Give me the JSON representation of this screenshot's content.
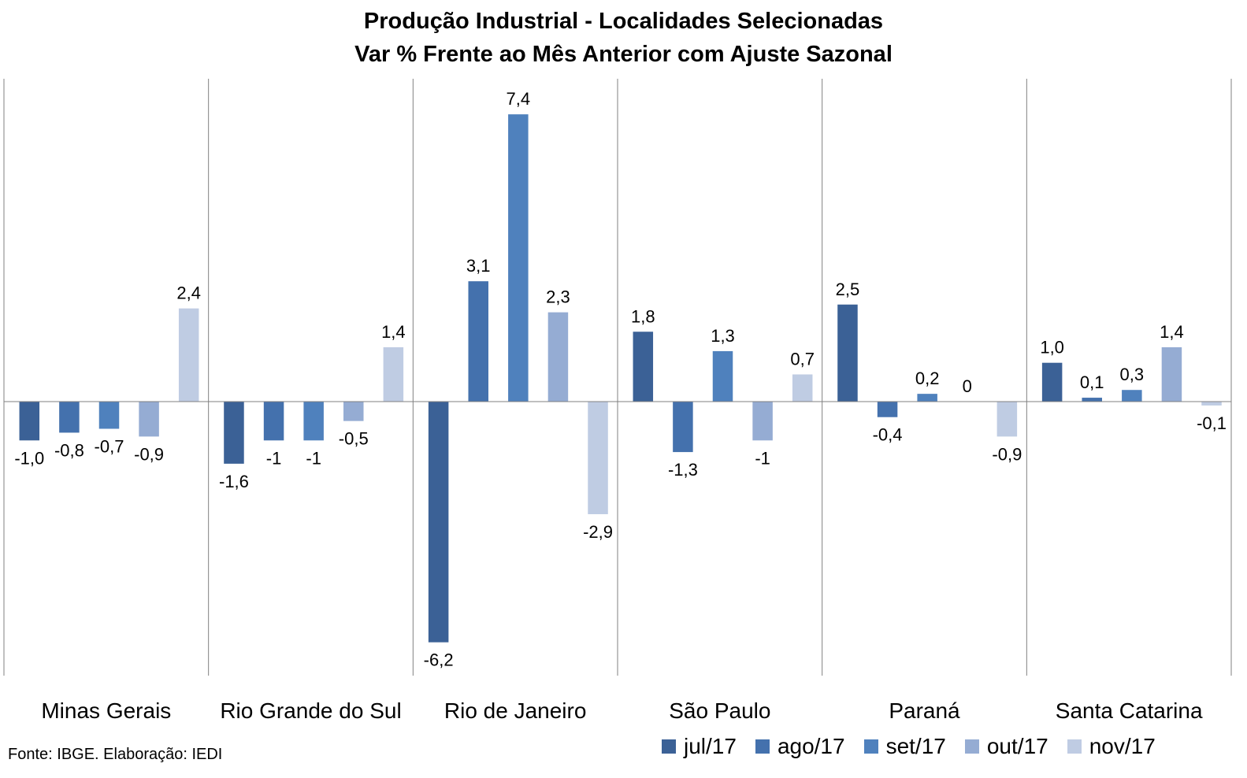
{
  "chart_data": {
    "type": "bar",
    "title": "Produção Industrial - Localidades Selecionadas",
    "subtitle": "Var % Frente ao Mês Anterior com Ajuste Sazonal",
    "categories": [
      "Minas Gerais",
      "Rio Grande do Sul",
      "Rio de Janeiro",
      "São Paulo",
      "Paraná",
      "Santa Catarina"
    ],
    "series": [
      {
        "name": "jul/17",
        "color": "#3b6196",
        "values": [
          -1.0,
          -1.6,
          -6.2,
          1.8,
          2.5,
          1.0
        ],
        "labels": [
          "-1,0",
          "-1,6",
          "-6,2",
          "1,8",
          "2,5",
          "1,0"
        ]
      },
      {
        "name": "ago/17",
        "color": "#4471ad",
        "values": [
          -0.8,
          -1,
          3.1,
          -1.3,
          -0.4,
          0.1
        ],
        "labels": [
          "-0,8",
          "-1",
          "3,1",
          "-1,3",
          "-0,4",
          "0,1"
        ]
      },
      {
        "name": "set/17",
        "color": "#4f81bd",
        "values": [
          -0.7,
          -1,
          7.4,
          1.3,
          0.2,
          0.3
        ],
        "labels": [
          "-0,7",
          "-1",
          "7,4",
          "1,3",
          "0,2",
          "0,3"
        ]
      },
      {
        "name": "out/17",
        "color": "#95acd3",
        "values": [
          -0.9,
          -0.5,
          2.3,
          -1,
          0,
          1.4
        ],
        "labels": [
          "-0,9",
          "-0,5",
          "2,3",
          "-1",
          "0",
          "1,4"
        ]
      },
      {
        "name": "nov/17",
        "color": "#bfcce3",
        "values": [
          2.4,
          1.4,
          -2.9,
          0.7,
          -0.9,
          -0.1
        ],
        "labels": [
          "2,4",
          "1,4",
          "-2,9",
          "0,7",
          "-0,9",
          "-0,1"
        ]
      }
    ],
    "ylim": [
      -7.0,
      8.3
    ],
    "grid": false,
    "legend_position": "bottom-right"
  },
  "source_note": "Fonte: IBGE. Elaboração: IEDI"
}
